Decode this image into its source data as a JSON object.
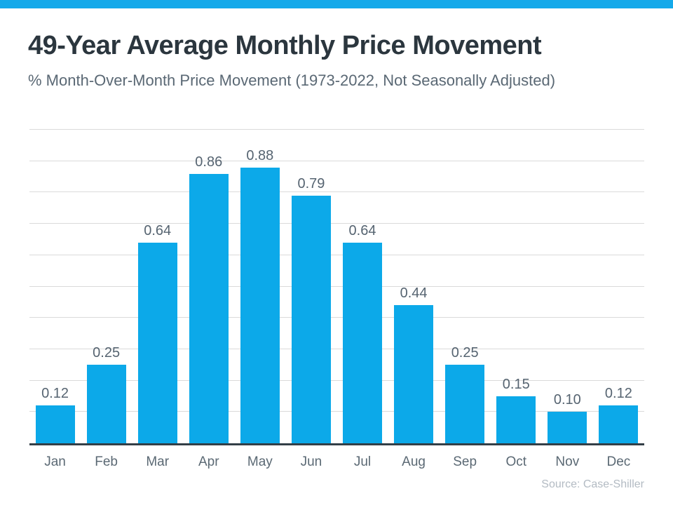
{
  "page": {
    "accent_color": "#14a9ea",
    "bar_color": "#0ca9e9",
    "gridline_color": "#dadada",
    "axis_color": "#333f47",
    "label_color": "#566471"
  },
  "header": {
    "title": "49-Year Average Monthly Price Movement",
    "subtitle": "% Month-Over-Month Price Movement (1973-2022, Not Seasonally Adjusted)"
  },
  "chart_data": {
    "type": "bar",
    "categories": [
      "Jan",
      "Feb",
      "Mar",
      "Apr",
      "May",
      "Jun",
      "Jul",
      "Aug",
      "Sep",
      "Oct",
      "Nov",
      "Dec"
    ],
    "values": [
      0.12,
      0.25,
      0.64,
      0.86,
      0.88,
      0.79,
      0.64,
      0.44,
      0.25,
      0.15,
      0.1,
      0.12
    ],
    "value_labels": [
      "0.12",
      "0.25",
      "0.64",
      "0.86",
      "0.88",
      "0.79",
      "0.64",
      "0.44",
      "0.25",
      "0.15",
      "0.10",
      "0.12"
    ],
    "title": "49-Year Average Monthly Price Movement",
    "subtitle": "% Month-Over-Month Price Movement (1973-2022, Not Seasonally Adjusted)",
    "xlabel": "",
    "ylabel": "",
    "ylim": [
      0,
      1.0
    ],
    "gridline_step": 0.1,
    "grid": true,
    "legend": false,
    "bar_color": "#0ca9e9"
  },
  "footer": {
    "source": "Source: Case-Shiller"
  }
}
